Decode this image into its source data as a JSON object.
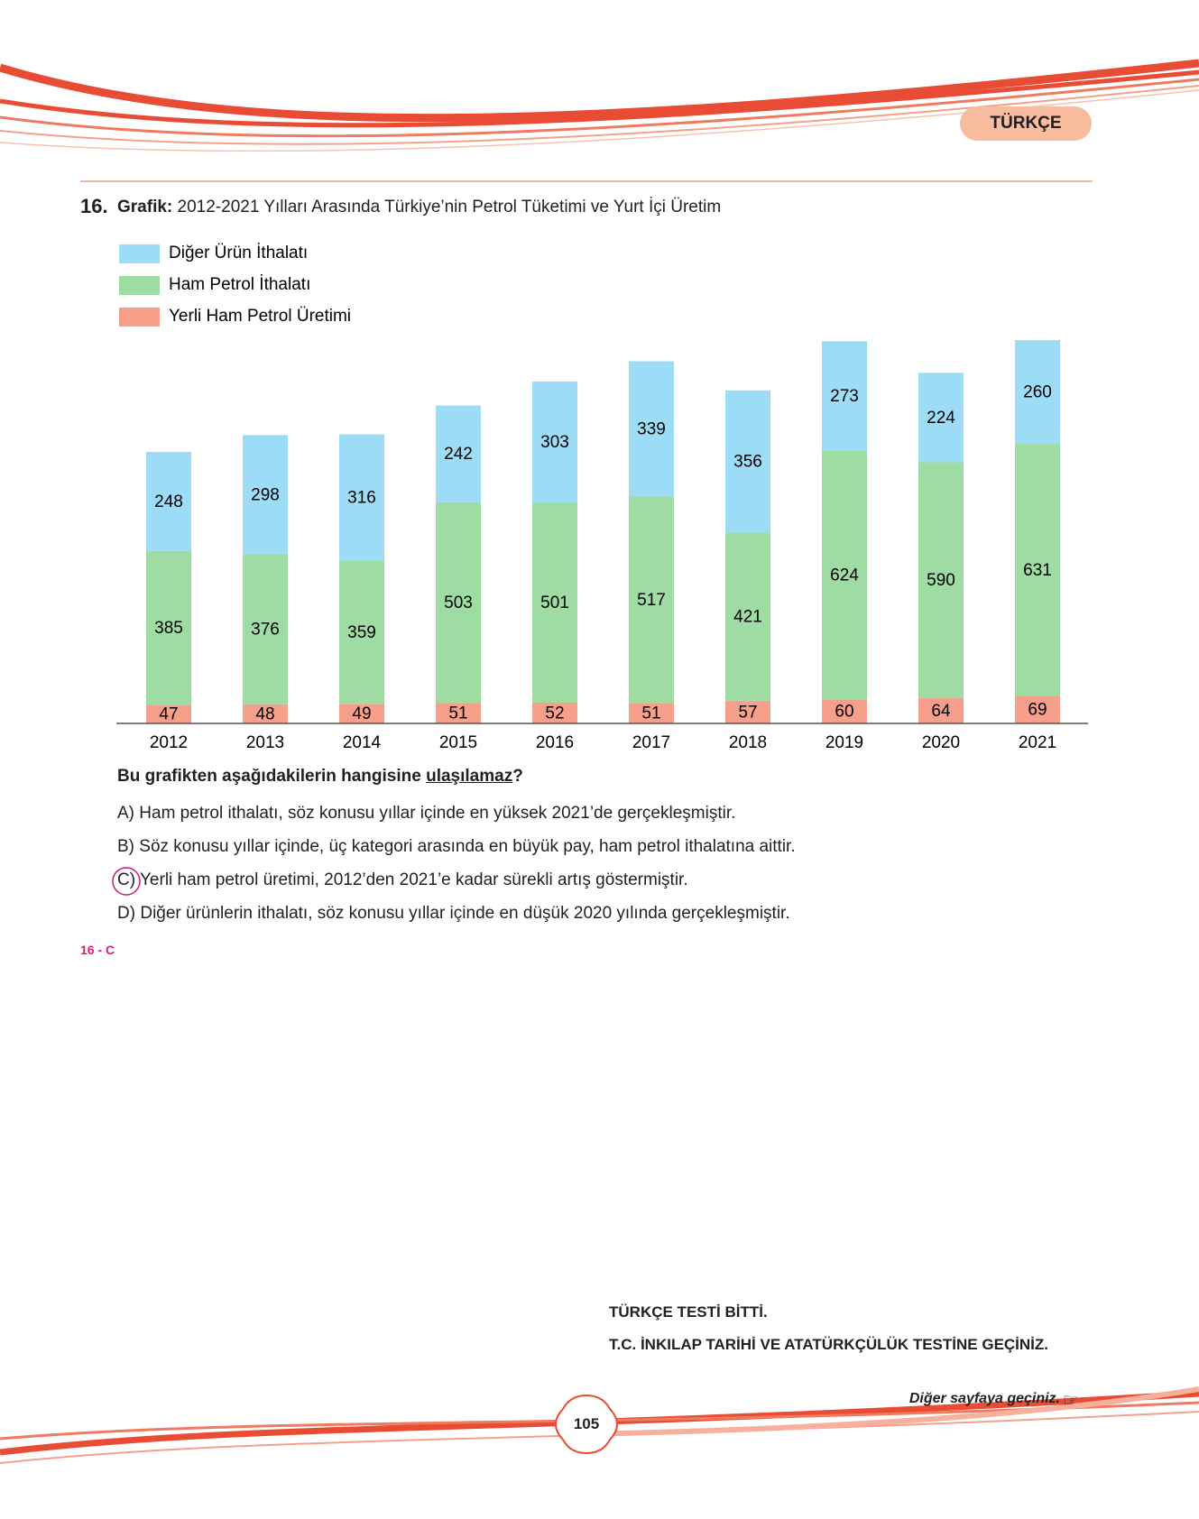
{
  "header": {
    "subject": "TÜRKÇE"
  },
  "question": {
    "number": "16.",
    "title_label": "Grafik:",
    "title": "2012-2021 Yılları Arasında Türkiye’nin Petrol Tüketimi ve Yurt İçi Üretim"
  },
  "chart_data": {
    "type": "bar",
    "stacked": true,
    "categories": [
      "2012",
      "2013",
      "2014",
      "2015",
      "2016",
      "2017",
      "2018",
      "2019",
      "2020",
      "2021"
    ],
    "series": [
      {
        "name": "Diğer Ürün İthalatı",
        "color": "#9ddcf6",
        "values": [
          248,
          298,
          316,
          242,
          303,
          339,
          356,
          273,
          224,
          260
        ]
      },
      {
        "name": "Ham Petrol İthalatı",
        "color": "#9edca3",
        "values": [
          385,
          376,
          359,
          503,
          501,
          517,
          421,
          624,
          590,
          631
        ]
      },
      {
        "name": "Yerli Ham Petrol Üretimi",
        "color": "#f6a08b",
        "values": [
          47,
          48,
          49,
          51,
          52,
          51,
          57,
          60,
          64,
          69
        ]
      }
    ]
  },
  "prompt": {
    "text": "Bu grafikten aşağıdakilerin hangisine",
    "emphasis": "ulaşılamaz",
    "end": "?"
  },
  "options": [
    {
      "letter": "A)",
      "text": "Ham petrol ithalatı, söz konusu yıllar içinde en yüksek 2021’de gerçekleşmiştir."
    },
    {
      "letter": "B)",
      "text": "Söz konusu yıllar içinde, üç kategori arasında en büyük pay, ham petrol ithalatına aittir."
    },
    {
      "letter": "C)",
      "text": "Yerli ham petrol üretimi, 2012’den 2021’e kadar sürekli artış göstermiştir."
    },
    {
      "letter": "D)",
      "text": "Diğer ürünlerin ithalatı, söz konusu yıllar içinde en düşük 2020 yılında gerçekleşmiştir."
    }
  ],
  "answer_key": "16 - C",
  "footer": {
    "line1": "TÜRKÇE TESTİ BİTTİ.",
    "line2": "T.C. İNKILAP TARİHİ VE ATATÜRKÇÜLÜK TESTİNE GEÇİNİZ.",
    "next": "Diğer sayfaya geçiniz.",
    "page": "105"
  }
}
